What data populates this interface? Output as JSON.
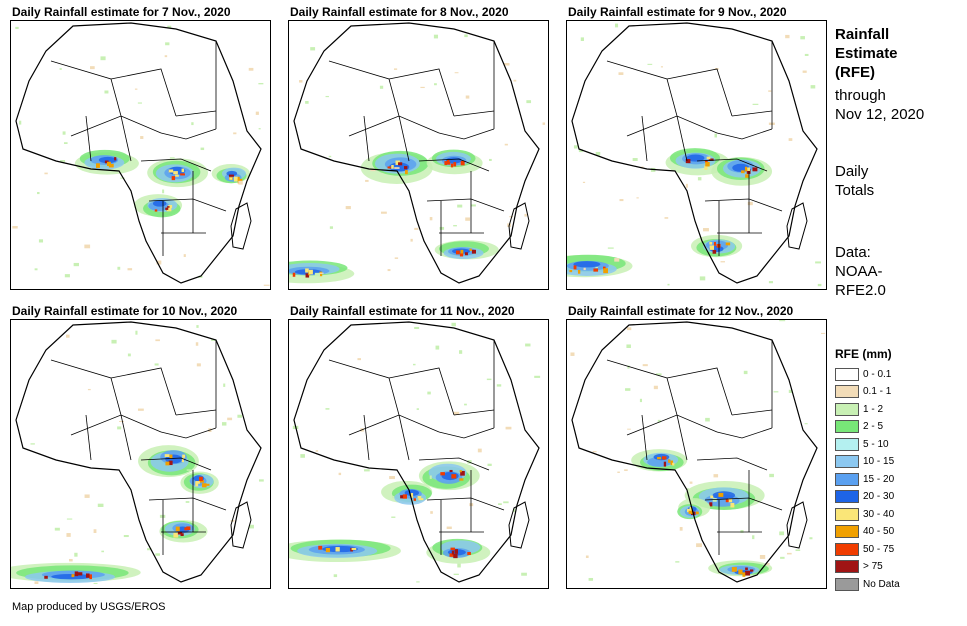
{
  "panels": [
    {
      "title": "Daily Rainfall estimate for 7 Nov., 2020"
    },
    {
      "title": "Daily Rainfall estimate for 8 Nov., 2020"
    },
    {
      "title": "Daily Rainfall estimate for 9 Nov., 2020"
    },
    {
      "title": "Daily Rainfall estimate for 10 Nov., 2020"
    },
    {
      "title": "Daily Rainfall estimate for 11 Nov., 2020"
    },
    {
      "title": "Daily Rainfall estimate for 12 Nov., 2020"
    }
  ],
  "side": {
    "heading_line1": "Rainfall",
    "heading_line2": "Estimate",
    "heading_line3": "(RFE)",
    "through_line1": "through",
    "through_line2": "Nov 12, 2020",
    "totals_line1": "Daily",
    "totals_line2": "Totals",
    "source_line1": "Data:",
    "source_line2": "NOAA-",
    "source_line3": "RFE2.0"
  },
  "legend": {
    "title": "RFE (mm)",
    "items": [
      {
        "label": "0 - 0.1",
        "color": "#ffffff"
      },
      {
        "label": "0.1 - 1",
        "color": "#f2dcb8"
      },
      {
        "label": "1 - 2",
        "color": "#c8f0b4"
      },
      {
        "label": "2 - 5",
        "color": "#78e678"
      },
      {
        "label": "5 - 10",
        "color": "#b4f0f0"
      },
      {
        "label": "10 - 15",
        "color": "#8cc8f0"
      },
      {
        "label": "15 - 20",
        "color": "#5aa0f0"
      },
      {
        "label": "20 - 30",
        "color": "#1e64e6"
      },
      {
        "label": "30 - 40",
        "color": "#fae678"
      },
      {
        "label": "40 - 50",
        "color": "#f0a000"
      },
      {
        "label": "50 - 75",
        "color": "#f03c00"
      },
      {
        "label": "> 75",
        "color": "#a01414"
      },
      {
        "label": "No Data",
        "color": "#9a9a9a"
      }
    ]
  },
  "footer": "Map produced by USGS/EROS"
}
